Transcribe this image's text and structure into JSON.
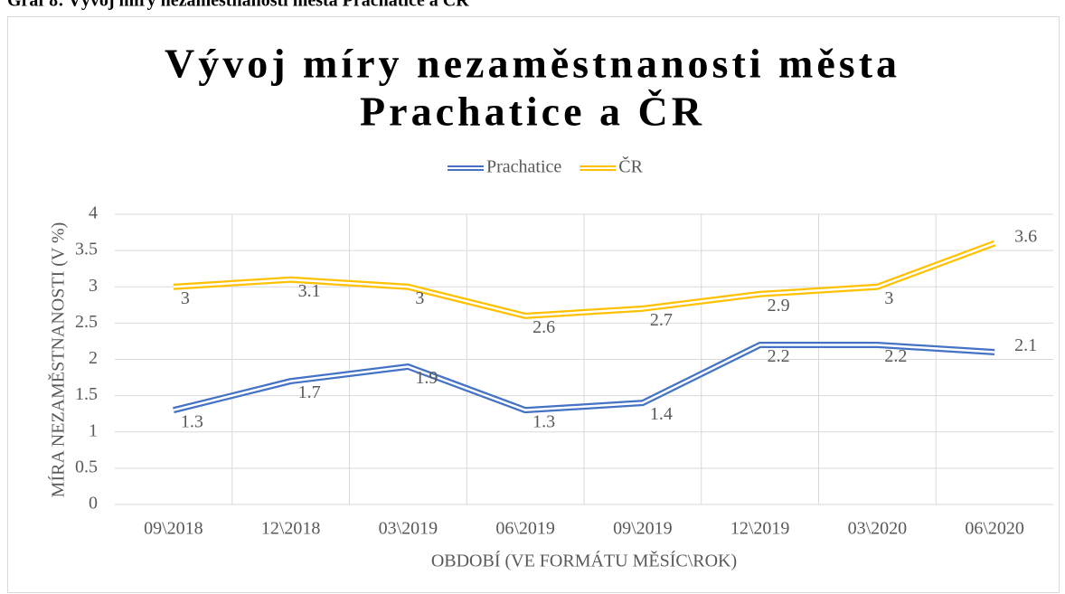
{
  "caption": "Graf 8: Vývoj míry nezaměstnanosti města Prachatice a ČR",
  "chart_data": {
    "type": "line",
    "title": [
      "Vývoj míry nezaměstnanosti města",
      "Prachatice a ČR"
    ],
    "x_label": "OBDOBÍ (VE FORMÁTU MĚSÍC\\ROK)",
    "y_label": "MÍRA NEZAMĚSTNANOSTI (V %)",
    "categories": [
      "09\\2018",
      "12\\2018",
      "03\\2019",
      "06\\2019",
      "09\\2019",
      "12\\2019",
      "03\\2020",
      "06\\2020"
    ],
    "series": [
      {
        "name": "Prachatice",
        "color": "#4472c4",
        "values": [
          1.3,
          1.7,
          1.9,
          1.3,
          1.4,
          2.2,
          2.2,
          2.1
        ]
      },
      {
        "name": "ČR",
        "color": "#ffc000",
        "values": [
          3,
          3.1,
          3,
          2.6,
          2.7,
          2.9,
          3,
          3.6
        ]
      }
    ],
    "ylim": [
      0,
      4
    ],
    "yticks": [
      0,
      0.5,
      1,
      1.5,
      2,
      2.5,
      3,
      3.5,
      4
    ],
    "grid": true,
    "legend": "top"
  }
}
